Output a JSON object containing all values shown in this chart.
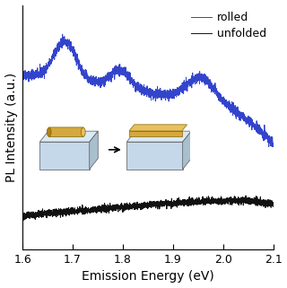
{
  "x_min": 1.6,
  "x_max": 2.1,
  "xlabel": "Emission Energy (eV)",
  "ylabel": "PL Intensity (a.u.)",
  "xticks": [
    1.6,
    1.7,
    1.8,
    1.9,
    2.0,
    2.1
  ],
  "legend_labels": [
    "rolled",
    "unfolded"
  ],
  "rolled_color": "#3344cc",
  "unfolded_color": "#111111",
  "background_color": "#ffffff",
  "seed": 42,
  "n_points": 3000,
  "figsize": [
    3.2,
    3.21
  ],
  "dpi": 100
}
